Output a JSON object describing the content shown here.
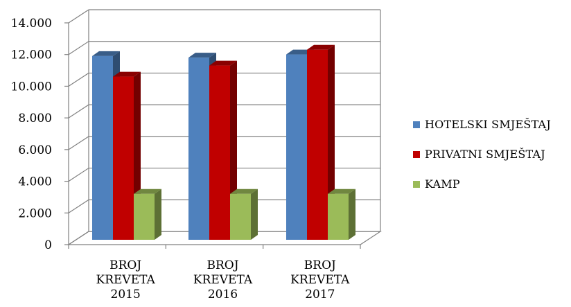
{
  "chart_data": {
    "type": "bar",
    "categories": [
      [
        "BROJ",
        "KREVETA",
        "2015"
      ],
      [
        "BROJ",
        "KREVETA",
        "2016"
      ],
      [
        "BROJ",
        "KREVETA",
        "2017"
      ]
    ],
    "series": [
      {
        "name": "HOTELSKI SMJEŠTAJ",
        "values": [
          12300,
          12200,
          12400
        ],
        "color": "#4F81BD"
      },
      {
        "name": "PRIVATNI SMJEŠTAJ",
        "values": [
          11000,
          11700,
          12700
        ],
        "color": "#C00000"
      },
      {
        "name": "KAMP",
        "values": [
          3600,
          3600,
          3600
        ],
        "color": "#9BBB59"
      }
    ],
    "yticks": [
      "0",
      "2.000",
      "4.000",
      "6.000",
      "8.000",
      "10.000",
      "12.000",
      "14.000"
    ],
    "ylim": [
      0,
      14000
    ],
    "grid": true,
    "legend_position": "right",
    "three_d": true
  }
}
